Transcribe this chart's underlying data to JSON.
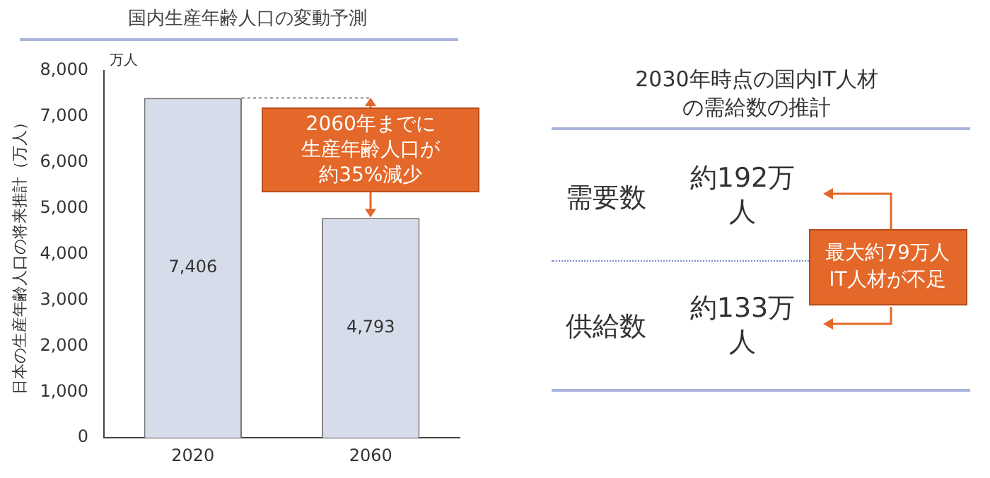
{
  "chart_data": [
    {
      "type": "bar",
      "title": "国内生産年齢人口の変動予測",
      "ylabel": "日本の生産年齢人口の将来推計（万人）",
      "categories": [
        "2020",
        "2060"
      ],
      "series": [
        {
          "color": "#d6dcea",
          "values": [
            7406,
            4793
          ],
          "value_labels": [
            "7,406",
            "4,793"
          ]
        }
      ],
      "ylim": [
        0,
        8000
      ],
      "yticks": [
        0,
        {
          "value": 1000,
          "label": "1,000"
        },
        {
          "value": 2000,
          "label": "2,000"
        },
        {
          "value": 3000,
          "label": "3,000"
        },
        {
          "value": 4000,
          "label": "4,000"
        },
        {
          "value": 5000,
          "label": "5,000"
        },
        {
          "value": 6000,
          "label": "6,000"
        },
        {
          "value": 7000,
          "label": "7,000"
        },
        {
          "value": 8000,
          "label": "8,000"
        }
      ],
      "grid": false,
      "legend": false,
      "ref_lines": [
        {
          "axis": "y",
          "value": 7406,
          "line_style": "dotted",
          "color": "#888888"
        }
      ],
      "annotations": [
        "万人",
        {
          "text": "2060年までに生産年齢人口が約35%減少",
          "x": "2060",
          "y": 4793
        }
      ]
    },
    {
      "type": "other",
      "title": "2030年時点の国内IT人材の需給数の推計",
      "annotations": [
        "需要数",
        "約192万人",
        "供給数",
        "約133万人",
        "最大約79万人IT人材が不足"
      ]
    }
  ]
}
